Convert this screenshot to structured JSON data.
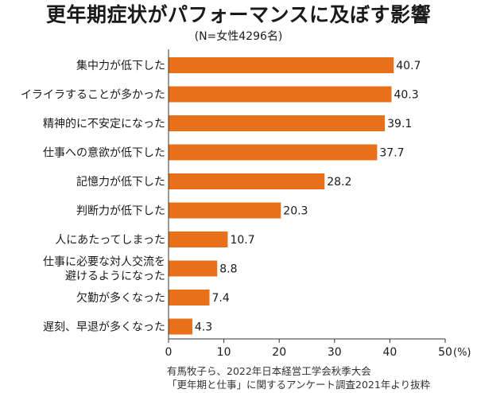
{
  "chart_data": {
    "type": "bar",
    "orientation": "horizontal",
    "title": "更年期症状がパフォーマンスに及ぼす影響",
    "subtitle": "(N=女性4296名)",
    "categories": [
      [
        "集中力が低下した"
      ],
      [
        "イライラすることが多かった"
      ],
      [
        "精神的に不安定になった"
      ],
      [
        "仕事への意欲が低下した"
      ],
      [
        "記憶力が低下した"
      ],
      [
        "判断力が低下した"
      ],
      [
        "人にあたってしまった"
      ],
      [
        "仕事に必要な対人交流を",
        "避けるようになった"
      ],
      [
        "欠勤が多くなった"
      ],
      [
        "遅刻、早退が多くなった"
      ]
    ],
    "values": [
      40.7,
      40.3,
      39.1,
      37.7,
      28.2,
      20.3,
      10.7,
      8.8,
      7.4,
      4.3
    ],
    "value_labels": [
      "40.7",
      "40.3",
      "39.1",
      "37.7",
      "28.2",
      "20.3",
      "10.7",
      "8.8",
      "7.4",
      "4.3"
    ],
    "xlim": [
      0,
      50
    ],
    "xticks": [
      "0",
      "10",
      "20",
      "30",
      "40",
      "50"
    ],
    "xunit": "(%)",
    "grid": false,
    "bar_color": "#E8701A"
  },
  "source": {
    "line1": "有馬牧子ら、2022年日本経営工学会秋季大会",
    "line2": "「更年期と仕事」に関するアンケート調査2021年より抜粋"
  }
}
